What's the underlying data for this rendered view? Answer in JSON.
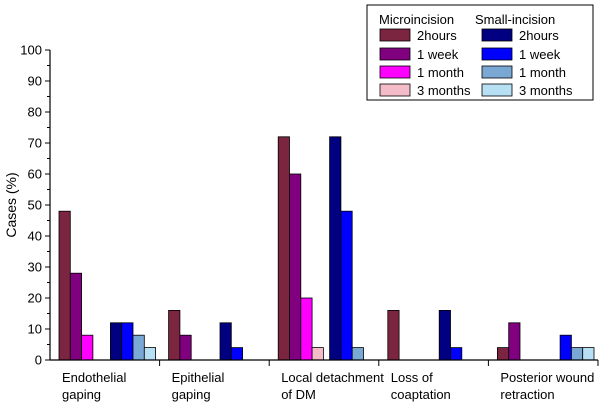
{
  "chart_data": {
    "type": "bar",
    "ylabel": "Cases (%)",
    "xlabel": "",
    "ylim": [
      0,
      100
    ],
    "yticks": [
      0,
      10,
      20,
      30,
      40,
      50,
      60,
      70,
      80,
      90,
      100
    ],
    "categories": [
      [
        "Endothelial",
        "gaping"
      ],
      [
        "Epithelial",
        "gaping"
      ],
      [
        "Local detachment",
        "of DM"
      ],
      [
        "Loss of",
        "coaptation"
      ],
      [
        "Posterior wound",
        "retraction"
      ]
    ],
    "legend": {
      "placement": "top-right",
      "group_headers": [
        "Microincision",
        "Small-incision"
      ]
    },
    "series": [
      {
        "name": "2hours",
        "group": "Microincision",
        "color": "#7b2540",
        "values": [
          48,
          16,
          72,
          16,
          4
        ]
      },
      {
        "name": "1 week",
        "group": "Microincision",
        "color": "#800080",
        "values": [
          28,
          8,
          60,
          0,
          12
        ]
      },
      {
        "name": "1 month",
        "group": "Microincision",
        "color": "#ff00ff",
        "values": [
          8,
          0,
          20,
          0,
          0
        ]
      },
      {
        "name": "3 months",
        "group": "Microincision",
        "color": "#f4bcc8",
        "values": [
          0,
          0,
          4,
          0,
          0
        ]
      },
      {
        "name": "2hours",
        "group": "Small-incision",
        "color": "#000080",
        "values": [
          12,
          12,
          72,
          16,
          0
        ]
      },
      {
        "name": "1 week",
        "group": "Small-incision",
        "color": "#0000ff",
        "values": [
          12,
          4,
          48,
          4,
          8
        ]
      },
      {
        "name": "1 month",
        "group": "Small-incision",
        "color": "#7aa8d4",
        "values": [
          8,
          0,
          4,
          0,
          4
        ]
      },
      {
        "name": "3 months",
        "group": "Small-incision",
        "color": "#b8e0f4",
        "values": [
          4,
          0,
          0,
          0,
          4
        ]
      }
    ]
  }
}
